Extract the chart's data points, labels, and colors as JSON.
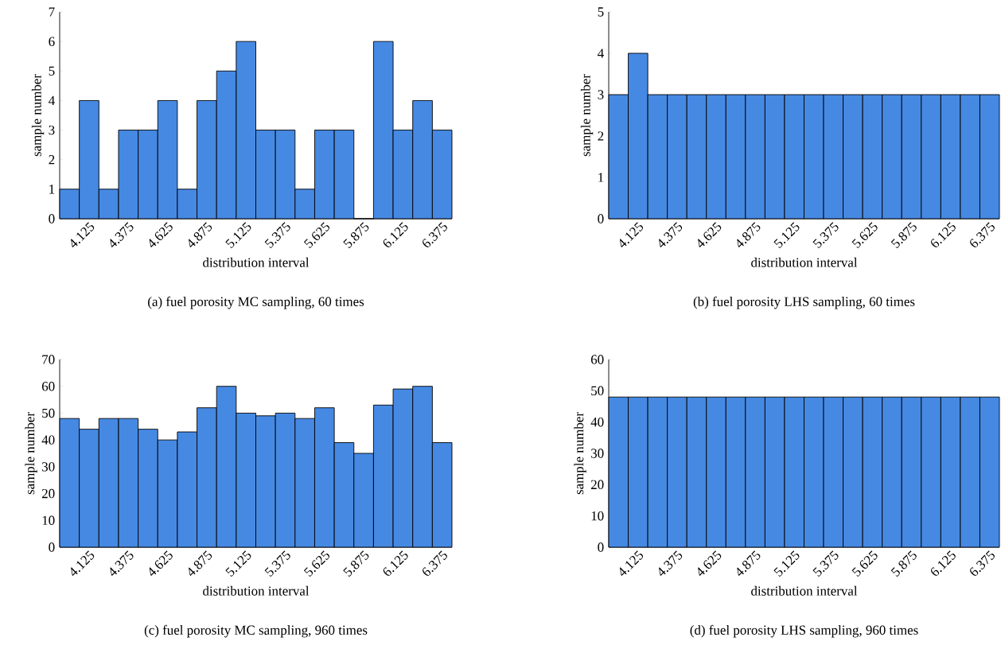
{
  "chart_data": [
    {
      "type": "histogram",
      "title": "(a) fuel porosity MC sampling, 60 times",
      "xlabel": "distribution interval",
      "ylabel": "sample number",
      "color": "#4689e3",
      "bins": [
        3.9375,
        4.0625,
        4.1875,
        4.3125,
        4.4375,
        4.5625,
        4.6875,
        4.8125,
        4.9375,
        5.0625,
        5.1875,
        5.3125,
        5.4375,
        5.5625,
        5.6875,
        5.8125,
        5.9375,
        6.0625,
        6.1875,
        6.3125,
        6.4375
      ],
      "values": [
        1,
        4,
        1,
        3,
        3,
        4,
        1,
        4,
        5,
        6,
        3,
        3,
        1,
        3,
        3,
        0,
        6,
        3,
        4,
        3
      ],
      "xlim": [
        3.9375,
        6.4375
      ],
      "ylim": [
        0,
        7
      ],
      "xticks": [
        4.125,
        4.375,
        4.625,
        4.875,
        5.125,
        5.375,
        5.625,
        5.875,
        6.125,
        6.375
      ],
      "yticks": [
        0,
        1,
        2,
        3,
        4,
        5,
        6,
        7
      ]
    },
    {
      "type": "histogram",
      "title": "(b) fuel porosity LHS sampling, 60 times",
      "xlabel": "distribution interval",
      "ylabel": "sample number",
      "color": "#4689e3",
      "bins": [
        3.9375,
        4.0625,
        4.1875,
        4.3125,
        4.4375,
        4.5625,
        4.6875,
        4.8125,
        4.9375,
        5.0625,
        5.1875,
        5.3125,
        5.4375,
        5.5625,
        5.6875,
        5.8125,
        5.9375,
        6.0625,
        6.1875,
        6.3125,
        6.4375
      ],
      "values": [
        3,
        4,
        3,
        3,
        3,
        3,
        3,
        3,
        3,
        3,
        3,
        3,
        3,
        3,
        3,
        3,
        3,
        3,
        3,
        3
      ],
      "xlim": [
        3.9375,
        6.4375
      ],
      "ylim": [
        0,
        5
      ],
      "xticks": [
        4.125,
        4.375,
        4.625,
        4.875,
        5.125,
        5.375,
        5.625,
        5.875,
        6.125,
        6.375
      ],
      "yticks": [
        0,
        1,
        2,
        3,
        4,
        5
      ]
    },
    {
      "type": "histogram",
      "title": "(c) fuel porosity MC sampling, 960 times",
      "xlabel": "distribution interval",
      "ylabel": "sample number",
      "color": "#4689e3",
      "bins": [
        3.9375,
        4.0625,
        4.1875,
        4.3125,
        4.4375,
        4.5625,
        4.6875,
        4.8125,
        4.9375,
        5.0625,
        5.1875,
        5.3125,
        5.4375,
        5.5625,
        5.6875,
        5.8125,
        5.9375,
        6.0625,
        6.1875,
        6.3125,
        6.4375
      ],
      "values": [
        48,
        44,
        48,
        48,
        44,
        40,
        43,
        52,
        60,
        50,
        49,
        50,
        48,
        52,
        39,
        35,
        53,
        59,
        60,
        39
      ],
      "xlim": [
        3.9375,
        6.4375
      ],
      "ylim": [
        0,
        70
      ],
      "xticks": [
        4.125,
        4.375,
        4.625,
        4.875,
        5.125,
        5.375,
        5.625,
        5.875,
        6.125,
        6.375
      ],
      "yticks": [
        0,
        10,
        20,
        30,
        40,
        50,
        60,
        70
      ]
    },
    {
      "type": "histogram",
      "title": "(d) fuel porosity LHS sampling, 960 times",
      "xlabel": "distribution interval",
      "ylabel": "sample number",
      "color": "#4689e3",
      "bins": [
        3.9375,
        4.0625,
        4.1875,
        4.3125,
        4.4375,
        4.5625,
        4.6875,
        4.8125,
        4.9375,
        5.0625,
        5.1875,
        5.3125,
        5.4375,
        5.5625,
        5.6875,
        5.8125,
        5.9375,
        6.0625,
        6.1875,
        6.3125,
        6.4375
      ],
      "values": [
        48,
        48,
        48,
        48,
        48,
        48,
        48,
        48,
        48,
        48,
        48,
        48,
        48,
        48,
        48,
        48,
        48,
        48,
        48,
        48
      ],
      "xlim": [
        3.9375,
        6.4375
      ],
      "ylim": [
        0,
        60
      ],
      "xticks": [
        4.125,
        4.375,
        4.625,
        4.875,
        5.125,
        5.375,
        5.625,
        5.875,
        6.125,
        6.375
      ],
      "yticks": [
        0,
        10,
        20,
        30,
        40,
        50,
        60
      ]
    }
  ]
}
